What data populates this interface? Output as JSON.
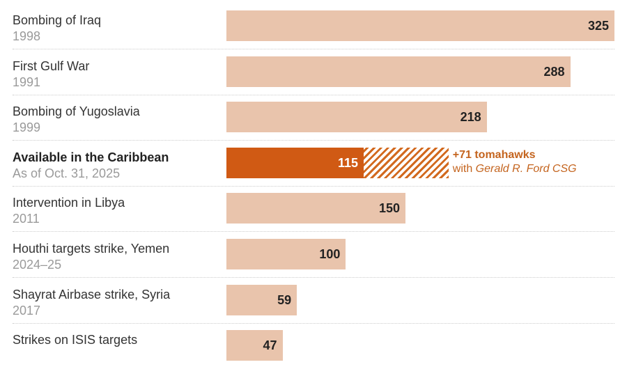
{
  "chart_data": {
    "type": "bar",
    "orientation": "horizontal",
    "xlim": [
      0,
      325
    ],
    "colors": {
      "bar": "#e9c4ac",
      "highlight": "#d05a14",
      "annotation": "#c4641e"
    },
    "rows": [
      {
        "label": "Bombing of Iraq",
        "year": "1998",
        "value": 325
      },
      {
        "label": "First Gulf War",
        "year": "1991",
        "value": 288
      },
      {
        "label": "Bombing of Yugoslavia",
        "year": "1999",
        "value": 218
      },
      {
        "label": "Available in the Caribbean",
        "year": "As of Oct. 31, 2025",
        "value": 115,
        "highlight": true,
        "extra": 71,
        "extra_label": "+71 tomahawks",
        "extra_note_prefix": "with",
        "extra_note_ship": "Gerald R. Ford CSG"
      },
      {
        "label": "Intervention in Libya",
        "year": "2011",
        "value": 150
      },
      {
        "label": "Houthi targets strike, Yemen",
        "year": "2024–25",
        "value": 100
      },
      {
        "label": "Shayrat Airbase strike, Syria",
        "year": "2017",
        "value": 59
      },
      {
        "label": "Strikes on ISIS targets",
        "year": "",
        "value": 47
      }
    ]
  }
}
